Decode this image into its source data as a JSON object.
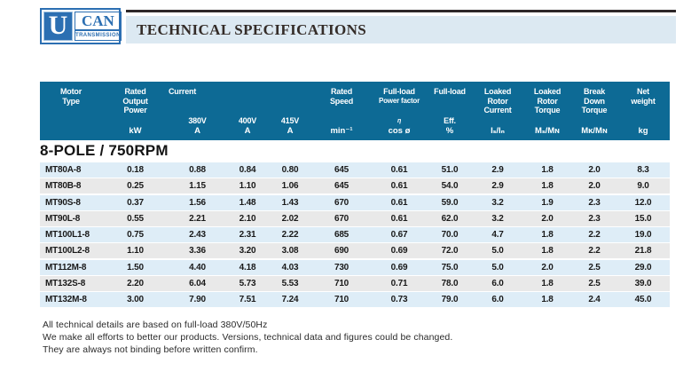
{
  "logo": {
    "u": "U",
    "can": "CAN",
    "transmission": "TRANSMISSION"
  },
  "page_header": {
    "title": "TECHNICAL SPECIFICATIONS"
  },
  "section": {
    "title": "8-POLE / 750RPM"
  },
  "colors": {
    "table_header_bg": "#0d6a95",
    "row_blue": "#deedf7",
    "row_gray": "#e9e9e9",
    "title_bar_bg": "#dce9f2",
    "logo_blue": "#2c6fb2"
  },
  "table": {
    "header": {
      "motor": {
        "l1": "Motor",
        "l2": "Type",
        "unit": ""
      },
      "power": {
        "l1": "Rated",
        "l2": "Output",
        "l3": "Power",
        "unit": "kW"
      },
      "current": {
        "title": "Current",
        "subcols": [
          {
            "label": "380V",
            "unit": "A"
          },
          {
            "label": "400V",
            "unit": "A"
          },
          {
            "label": "415V",
            "unit": "A"
          }
        ]
      },
      "speed": {
        "l1": "Rated",
        "l2": "Speed",
        "unit": "min⁻¹"
      },
      "pf": {
        "l1": "Full-load",
        "l2": "Power factor",
        "l3": "η",
        "unit": "cos ø"
      },
      "eff": {
        "l1": "Full-load",
        "l3": "Eff.",
        "unit": "%"
      },
      "lrc": {
        "l1": "Loaked",
        "l2": "Rotor",
        "l3": "Current",
        "unit": "Iₛ/Iₙ"
      },
      "lrt": {
        "l1": "Loaked",
        "l2": "Rotor",
        "l3": "Torque",
        "unit": "Mₛ/Mɴ"
      },
      "bdt": {
        "l1": "Break",
        "l2": "Down",
        "l3": "Torque",
        "unit": "Mᴋ/Mɴ"
      },
      "weight": {
        "l1": "Net",
        "l2": "weight",
        "unit": "kg"
      }
    },
    "rows": [
      {
        "motor": "MT80A-8",
        "values": [
          "0.18",
          "0.88",
          "0.84",
          "0.80",
          "645",
          "0.61",
          "51.0",
          "2.9",
          "1.8",
          "2.0",
          "8.3"
        ]
      },
      {
        "motor": "MT80B-8",
        "values": [
          "0.25",
          "1.15",
          "1.10",
          "1.06",
          "645",
          "0.61",
          "54.0",
          "2.9",
          "1.8",
          "2.0",
          "9.0"
        ]
      },
      {
        "motor": "MT90S-8",
        "values": [
          "0.37",
          "1.56",
          "1.48",
          "1.43",
          "670",
          "0.61",
          "59.0",
          "3.2",
          "1.9",
          "2.3",
          "12.0"
        ]
      },
      {
        "motor": "MT90L-8",
        "values": [
          "0.55",
          "2.21",
          "2.10",
          "2.02",
          "670",
          "0.61",
          "62.0",
          "3.2",
          "2.0",
          "2.3",
          "15.0"
        ]
      },
      {
        "motor": "MT100L1-8",
        "values": [
          "0.75",
          "2.43",
          "2.31",
          "2.22",
          "685",
          "0.67",
          "70.0",
          "4.7",
          "1.8",
          "2.2",
          "19.0"
        ]
      },
      {
        "motor": "MT100L2-8",
        "values": [
          "1.10",
          "3.36",
          "3.20",
          "3.08",
          "690",
          "0.69",
          "72.0",
          "5.0",
          "1.8",
          "2.2",
          "21.8"
        ]
      },
      {
        "motor": "MT112M-8",
        "values": [
          "1.50",
          "4.40",
          "4.18",
          "4.03",
          "730",
          "0.69",
          "75.0",
          "5.0",
          "2.0",
          "2.5",
          "29.0"
        ]
      },
      {
        "motor": "MT132S-8",
        "values": [
          "2.20",
          "6.04",
          "5.73",
          "5.53",
          "710",
          "0.71",
          "78.0",
          "6.0",
          "1.8",
          "2.5",
          "39.0"
        ]
      },
      {
        "motor": "MT132M-8",
        "values": [
          "3.00",
          "7.90",
          "7.51",
          "7.24",
          "710",
          "0.73",
          "79.0",
          "6.0",
          "1.8",
          "2.4",
          "45.0"
        ]
      }
    ]
  },
  "footer": {
    "lines": [
      "All technical details are based on full-load 380V/50Hz",
      "We make all efforts to better our products. Versions, technical data and figures could be changed.",
      "They are always not binding before written confirm."
    ]
  }
}
